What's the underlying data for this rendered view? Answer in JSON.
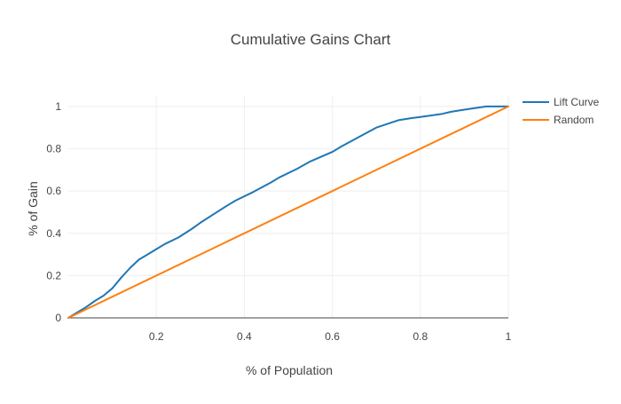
{
  "chart_data": {
    "type": "line",
    "title": "Cumulative Gains Chart",
    "xlabel": "% of Population",
    "ylabel": "% of Gain",
    "xlim": [
      0,
      1
    ],
    "ylim": [
      0,
      1.05
    ],
    "x_ticks": [
      0.2,
      0.4,
      0.6,
      0.8,
      1
    ],
    "x_tick_labels": [
      "0.2",
      "0.4",
      "0.6",
      "0.8",
      "1"
    ],
    "y_ticks": [
      0,
      0.2,
      0.4,
      0.6,
      0.8,
      1
    ],
    "y_tick_labels": [
      "0",
      "0.2",
      "0.4",
      "0.6",
      "0.8",
      "1"
    ],
    "grid": true,
    "legend_position": "top-right",
    "series": [
      {
        "name": "Lift Curve",
        "color": "#1f77b4",
        "x": [
          0,
          0.02,
          0.04,
          0.06,
          0.08,
          0.1,
          0.12,
          0.14,
          0.16,
          0.18,
          0.2,
          0.22,
          0.25,
          0.28,
          0.3,
          0.33,
          0.36,
          0.38,
          0.42,
          0.46,
          0.48,
          0.52,
          0.55,
          0.6,
          0.62,
          0.66,
          0.7,
          0.75,
          0.78,
          0.8,
          0.85,
          0.87,
          0.9,
          0.95,
          1
        ],
        "y": [
          0,
          0.025,
          0.05,
          0.08,
          0.105,
          0.14,
          0.19,
          0.235,
          0.275,
          0.3,
          0.325,
          0.35,
          0.38,
          0.42,
          0.45,
          0.49,
          0.53,
          0.555,
          0.595,
          0.64,
          0.665,
          0.705,
          0.74,
          0.785,
          0.81,
          0.855,
          0.9,
          0.935,
          0.945,
          0.95,
          0.965,
          0.975,
          0.985,
          1,
          1
        ]
      },
      {
        "name": "Random",
        "color": "#ff7f0e",
        "x": [
          0,
          1
        ],
        "y": [
          0,
          1
        ]
      }
    ]
  }
}
